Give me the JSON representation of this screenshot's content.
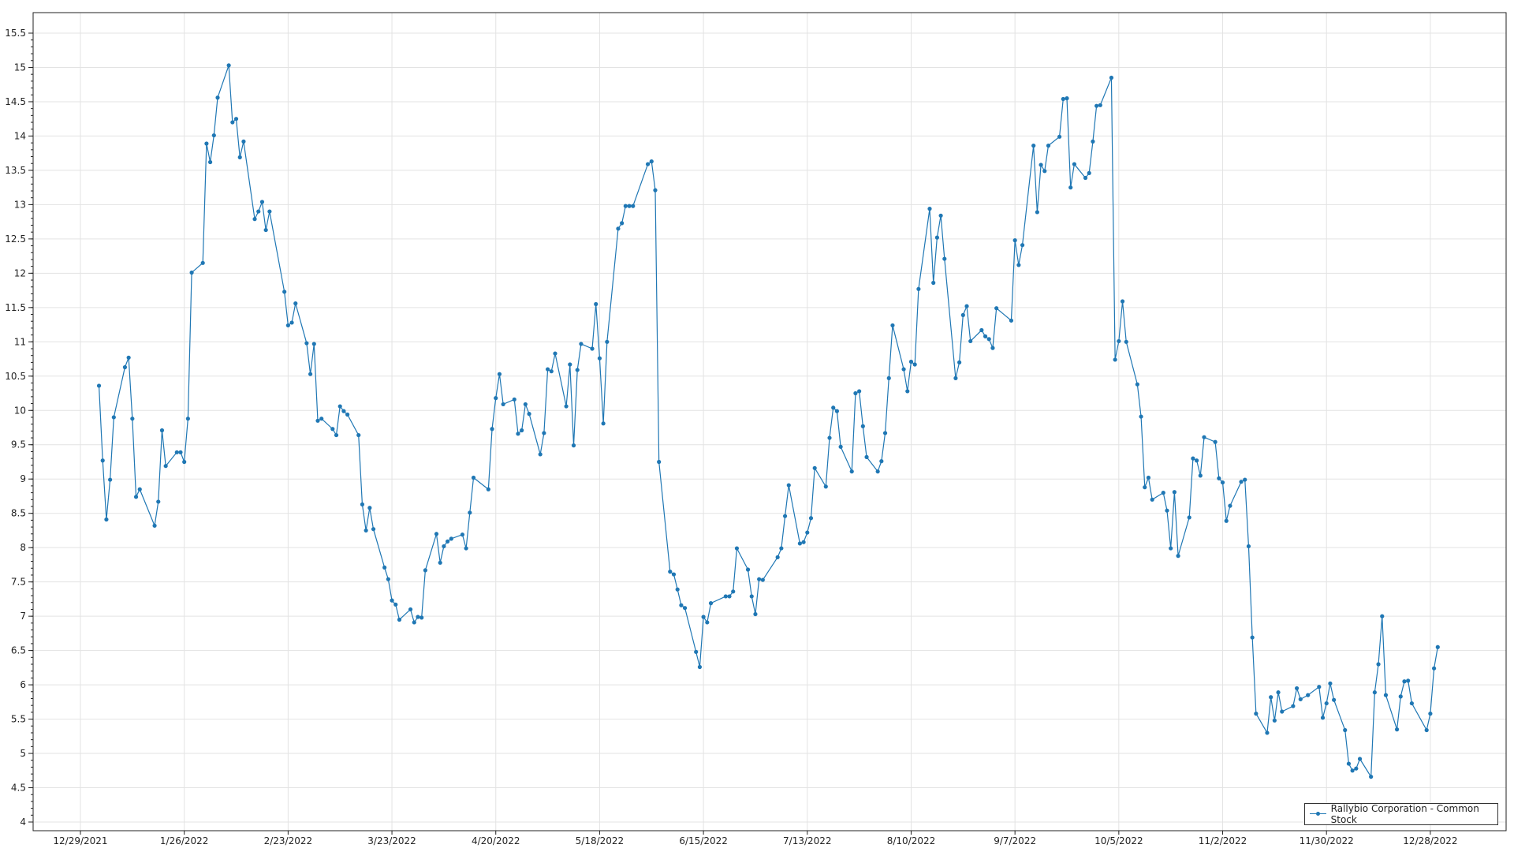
{
  "chart_data": {
    "type": "line",
    "title": "",
    "xlabel": "",
    "ylabel": "",
    "ylim": [
      4,
      15.5
    ],
    "y_ticks": [
      "4",
      "4.5",
      "5",
      "5.5",
      "6",
      "6.5",
      "7",
      "7.5",
      "8",
      "8.5",
      "9",
      "9.5",
      "10",
      "10.5",
      "11",
      "11.5",
      "12",
      "12.5",
      "13",
      "13.5",
      "14",
      "14.5",
      "15",
      "15.5"
    ],
    "x_ticks": [
      "12/29/2021",
      "1/26/2022",
      "2/23/2022",
      "3/23/2022",
      "4/20/2022",
      "5/18/2022",
      "6/15/2022",
      "7/13/2022",
      "8/10/2022",
      "9/7/2022",
      "10/5/2022",
      "11/2/2022",
      "11/30/2022",
      "12/28/2022"
    ],
    "grid": true,
    "legend_placement": "bottom-right",
    "color": "#1f77b4",
    "series": [
      {
        "name": "Rallybio Corporation - Common Stock",
        "points": [
          [
            "2022-01-03",
            10.36
          ],
          [
            "2022-01-04",
            9.27
          ],
          [
            "2022-01-05",
            8.41
          ],
          [
            "2022-01-06",
            8.99
          ],
          [
            "2022-01-07",
            9.9
          ],
          [
            "2022-01-10",
            10.63
          ],
          [
            "2022-01-11",
            10.77
          ],
          [
            "2022-01-12",
            9.88
          ],
          [
            "2022-01-13",
            8.74
          ],
          [
            "2022-01-14",
            8.85
          ],
          [
            "2022-01-18",
            8.32
          ],
          [
            "2022-01-19",
            8.67
          ],
          [
            "2022-01-20",
            9.71
          ],
          [
            "2022-01-21",
            9.19
          ],
          [
            "2022-01-24",
            9.39
          ],
          [
            "2022-01-25",
            9.39
          ],
          [
            "2022-01-26",
            9.25
          ],
          [
            "2022-01-27",
            9.88
          ],
          [
            "2022-01-28",
            12.01
          ],
          [
            "2022-01-31",
            12.15
          ],
          [
            "2022-02-01",
            13.89
          ],
          [
            "2022-02-02",
            13.62
          ],
          [
            "2022-02-03",
            14.01
          ],
          [
            "2022-02-04",
            14.56
          ],
          [
            "2022-02-07",
            15.03
          ],
          [
            "2022-02-08",
            14.2
          ],
          [
            "2022-02-09",
            14.25
          ],
          [
            "2022-02-10",
            13.69
          ],
          [
            "2022-02-11",
            13.92
          ],
          [
            "2022-02-14",
            12.79
          ],
          [
            "2022-02-15",
            12.9
          ],
          [
            "2022-02-16",
            13.04
          ],
          [
            "2022-02-17",
            12.63
          ],
          [
            "2022-02-18",
            12.9
          ],
          [
            "2022-02-22",
            11.73
          ],
          [
            "2022-02-23",
            11.24
          ],
          [
            "2022-02-24",
            11.28
          ],
          [
            "2022-02-25",
            11.56
          ],
          [
            "2022-02-28",
            10.98
          ],
          [
            "2022-03-01",
            10.53
          ],
          [
            "2022-03-02",
            10.97
          ],
          [
            "2022-03-03",
            9.85
          ],
          [
            "2022-03-04",
            9.88
          ],
          [
            "2022-03-07",
            9.73
          ],
          [
            "2022-03-08",
            9.64
          ],
          [
            "2022-03-09",
            10.06
          ],
          [
            "2022-03-10",
            9.99
          ],
          [
            "2022-03-11",
            9.94
          ],
          [
            "2022-03-14",
            9.64
          ],
          [
            "2022-03-15",
            8.63
          ],
          [
            "2022-03-16",
            8.25
          ],
          [
            "2022-03-17",
            8.58
          ],
          [
            "2022-03-18",
            8.27
          ],
          [
            "2022-03-21",
            7.71
          ],
          [
            "2022-03-22",
            7.54
          ],
          [
            "2022-03-23",
            7.23
          ],
          [
            "2022-03-24",
            7.17
          ],
          [
            "2022-03-25",
            6.95
          ],
          [
            "2022-03-28",
            7.1
          ],
          [
            "2022-03-29",
            6.91
          ],
          [
            "2022-03-30",
            6.99
          ],
          [
            "2022-03-31",
            6.98
          ],
          [
            "2022-04-01",
            7.67
          ],
          [
            "2022-04-04",
            8.2
          ],
          [
            "2022-04-05",
            7.78
          ],
          [
            "2022-04-06",
            8.02
          ],
          [
            "2022-04-07",
            8.09
          ],
          [
            "2022-04-08",
            8.13
          ],
          [
            "2022-04-11",
            8.19
          ],
          [
            "2022-04-12",
            7.99
          ],
          [
            "2022-04-13",
            8.51
          ],
          [
            "2022-04-14",
            9.02
          ],
          [
            "2022-04-18",
            8.85
          ],
          [
            "2022-04-19",
            9.73
          ],
          [
            "2022-04-20",
            10.18
          ],
          [
            "2022-04-21",
            10.53
          ],
          [
            "2022-04-22",
            10.09
          ],
          [
            "2022-04-25",
            10.16
          ],
          [
            "2022-04-26",
            9.66
          ],
          [
            "2022-04-27",
            9.71
          ],
          [
            "2022-04-28",
            10.09
          ],
          [
            "2022-04-29",
            9.95
          ],
          [
            "2022-05-02",
            9.36
          ],
          [
            "2022-05-03",
            9.67
          ],
          [
            "2022-05-04",
            10.6
          ],
          [
            "2022-05-05",
            10.57
          ],
          [
            "2022-05-06",
            10.83
          ],
          [
            "2022-05-09",
            10.06
          ],
          [
            "2022-05-10",
            10.67
          ],
          [
            "2022-05-11",
            9.49
          ],
          [
            "2022-05-12",
            10.59
          ],
          [
            "2022-05-13",
            10.97
          ],
          [
            "2022-05-16",
            10.9
          ],
          [
            "2022-05-17",
            11.55
          ],
          [
            "2022-05-18",
            10.76
          ],
          [
            "2022-05-19",
            9.81
          ],
          [
            "2022-05-20",
            11.0
          ],
          [
            "2022-05-23",
            12.65
          ],
          [
            "2022-05-24",
            12.73
          ],
          [
            "2022-05-25",
            12.98
          ],
          [
            "2022-05-26",
            12.98
          ],
          [
            "2022-05-27",
            12.98
          ],
          [
            "2022-05-31",
            13.59
          ],
          [
            "2022-06-01",
            13.63
          ],
          [
            "2022-06-02",
            13.21
          ],
          [
            "2022-06-03",
            9.25
          ],
          [
            "2022-06-06",
            7.65
          ],
          [
            "2022-06-07",
            7.61
          ],
          [
            "2022-06-08",
            7.39
          ],
          [
            "2022-06-09",
            7.16
          ],
          [
            "2022-06-10",
            7.12
          ],
          [
            "2022-06-13",
            6.48
          ],
          [
            "2022-06-14",
            6.26
          ],
          [
            "2022-06-15",
            6.99
          ],
          [
            "2022-06-16",
            6.91
          ],
          [
            "2022-06-17",
            7.19
          ],
          [
            "2022-06-21",
            7.29
          ],
          [
            "2022-06-22",
            7.29
          ],
          [
            "2022-06-23",
            7.36
          ],
          [
            "2022-06-24",
            7.99
          ],
          [
            "2022-06-27",
            7.68
          ],
          [
            "2022-06-28",
            7.29
          ],
          [
            "2022-06-29",
            7.03
          ],
          [
            "2022-06-30",
            7.54
          ],
          [
            "2022-07-01",
            7.53
          ],
          [
            "2022-07-05",
            7.86
          ],
          [
            "2022-07-06",
            7.99
          ],
          [
            "2022-07-07",
            8.46
          ],
          [
            "2022-07-08",
            8.91
          ],
          [
            "2022-07-11",
            8.06
          ],
          [
            "2022-07-12",
            8.08
          ],
          [
            "2022-07-13",
            8.22
          ],
          [
            "2022-07-14",
            8.43
          ],
          [
            "2022-07-15",
            9.16
          ],
          [
            "2022-07-18",
            8.89
          ],
          [
            "2022-07-19",
            9.6
          ],
          [
            "2022-07-20",
            10.04
          ],
          [
            "2022-07-21",
            9.99
          ],
          [
            "2022-07-22",
            9.47
          ],
          [
            "2022-07-25",
            9.11
          ],
          [
            "2022-07-26",
            10.25
          ],
          [
            "2022-07-27",
            10.28
          ],
          [
            "2022-07-28",
            9.77
          ],
          [
            "2022-07-29",
            9.32
          ],
          [
            "2022-08-01",
            9.11
          ],
          [
            "2022-08-02",
            9.26
          ],
          [
            "2022-08-03",
            9.67
          ],
          [
            "2022-08-04",
            10.47
          ],
          [
            "2022-08-05",
            11.24
          ],
          [
            "2022-08-08",
            10.6
          ],
          [
            "2022-08-09",
            10.28
          ],
          [
            "2022-08-10",
            10.71
          ],
          [
            "2022-08-11",
            10.67
          ],
          [
            "2022-08-12",
            11.77
          ],
          [
            "2022-08-15",
            12.94
          ],
          [
            "2022-08-16",
            11.86
          ],
          [
            "2022-08-17",
            12.52
          ],
          [
            "2022-08-18",
            12.84
          ],
          [
            "2022-08-19",
            12.21
          ],
          [
            "2022-08-22",
            10.47
          ],
          [
            "2022-08-23",
            10.7
          ],
          [
            "2022-08-24",
            11.39
          ],
          [
            "2022-08-25",
            11.52
          ],
          [
            "2022-08-26",
            11.01
          ],
          [
            "2022-08-29",
            11.17
          ],
          [
            "2022-08-30",
            11.08
          ],
          [
            "2022-08-31",
            11.04
          ],
          [
            "2022-09-01",
            10.91
          ],
          [
            "2022-09-02",
            11.49
          ],
          [
            "2022-09-06",
            11.31
          ],
          [
            "2022-09-07",
            12.48
          ],
          [
            "2022-09-08",
            12.12
          ],
          [
            "2022-09-09",
            12.41
          ],
          [
            "2022-09-12",
            13.86
          ],
          [
            "2022-09-13",
            12.89
          ],
          [
            "2022-09-14",
            13.58
          ],
          [
            "2022-09-15",
            13.49
          ],
          [
            "2022-09-16",
            13.86
          ],
          [
            "2022-09-19",
            13.99
          ],
          [
            "2022-09-20",
            14.54
          ],
          [
            "2022-09-21",
            14.55
          ],
          [
            "2022-09-22",
            13.25
          ],
          [
            "2022-09-23",
            13.59
          ],
          [
            "2022-09-26",
            13.39
          ],
          [
            "2022-09-27",
            13.46
          ],
          [
            "2022-09-28",
            13.92
          ],
          [
            "2022-09-29",
            14.44
          ],
          [
            "2022-09-30",
            14.45
          ],
          [
            "2022-10-03",
            14.85
          ],
          [
            "2022-10-04",
            10.74
          ],
          [
            "2022-10-05",
            11.01
          ],
          [
            "2022-10-06",
            11.59
          ],
          [
            "2022-10-07",
            11.0
          ],
          [
            "2022-10-10",
            10.38
          ],
          [
            "2022-10-11",
            9.91
          ],
          [
            "2022-10-12",
            8.88
          ],
          [
            "2022-10-13",
            9.02
          ],
          [
            "2022-10-14",
            8.7
          ],
          [
            "2022-10-17",
            8.8
          ],
          [
            "2022-10-18",
            8.54
          ],
          [
            "2022-10-19",
            7.99
          ],
          [
            "2022-10-20",
            8.81
          ],
          [
            "2022-10-21",
            7.88
          ],
          [
            "2022-10-24",
            8.44
          ],
          [
            "2022-10-25",
            9.3
          ],
          [
            "2022-10-26",
            9.27
          ],
          [
            "2022-10-27",
            9.05
          ],
          [
            "2022-10-28",
            9.61
          ],
          [
            "2022-10-31",
            9.54
          ],
          [
            "2022-11-01",
            9.01
          ],
          [
            "2022-11-02",
            8.95
          ],
          [
            "2022-11-03",
            8.39
          ],
          [
            "2022-11-04",
            8.61
          ],
          [
            "2022-11-07",
            8.96
          ],
          [
            "2022-11-08",
            8.99
          ],
          [
            "2022-11-09",
            8.02
          ],
          [
            "2022-11-10",
            6.69
          ],
          [
            "2022-11-11",
            5.58
          ],
          [
            "2022-11-14",
            5.3
          ],
          [
            "2022-11-15",
            5.82
          ],
          [
            "2022-11-16",
            5.48
          ],
          [
            "2022-11-17",
            5.89
          ],
          [
            "2022-11-18",
            5.61
          ],
          [
            "2022-11-21",
            5.69
          ],
          [
            "2022-11-22",
            5.95
          ],
          [
            "2022-11-23",
            5.79
          ],
          [
            "2022-11-25",
            5.85
          ],
          [
            "2022-11-28",
            5.97
          ],
          [
            "2022-11-29",
            5.52
          ],
          [
            "2022-11-30",
            5.73
          ],
          [
            "2022-12-01",
            6.02
          ],
          [
            "2022-12-02",
            5.78
          ],
          [
            "2022-12-05",
            5.34
          ],
          [
            "2022-12-06",
            4.85
          ],
          [
            "2022-12-07",
            4.75
          ],
          [
            "2022-12-08",
            4.78
          ],
          [
            "2022-12-09",
            4.92
          ],
          [
            "2022-12-12",
            4.66
          ],
          [
            "2022-12-13",
            5.89
          ],
          [
            "2022-12-14",
            6.3
          ],
          [
            "2022-12-15",
            7.0
          ],
          [
            "2022-12-16",
            5.85
          ],
          [
            "2022-12-19",
            5.35
          ],
          [
            "2022-12-20",
            5.83
          ],
          [
            "2022-12-21",
            6.05
          ],
          [
            "2022-12-22",
            6.06
          ],
          [
            "2022-12-23",
            5.73
          ],
          [
            "2022-12-27",
            5.34
          ],
          [
            "2022-12-28",
            5.58
          ],
          [
            "2022-12-29",
            6.24
          ],
          [
            "2022-12-30",
            6.55
          ]
        ]
      }
    ]
  }
}
